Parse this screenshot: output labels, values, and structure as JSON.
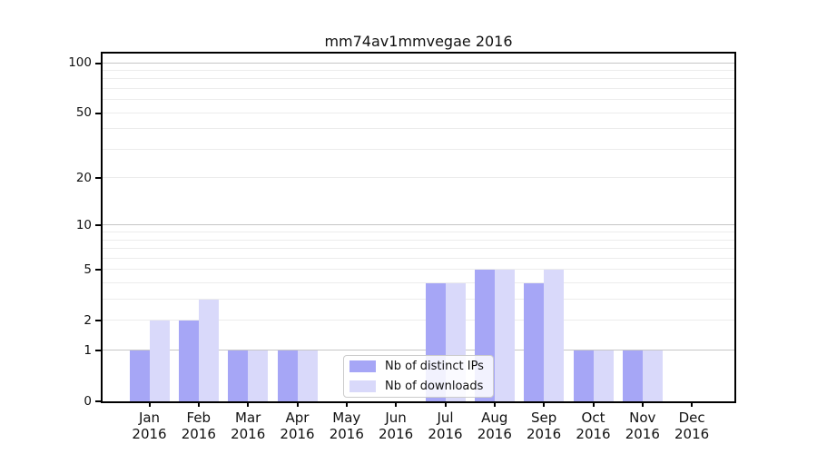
{
  "figure": {
    "background": "#ffffff"
  },
  "chart_data": {
    "type": "bar",
    "title": "mm74av1mmvegae 2016",
    "categories": [
      "Jan 2016",
      "Feb 2016",
      "Mar 2016",
      "Apr 2016",
      "May 2016",
      "Jun 2016",
      "Jul 2016",
      "Aug 2016",
      "Sep 2016",
      "Oct 2016",
      "Nov 2016",
      "Dec 2016"
    ],
    "series": [
      {
        "name": "Nb of distinct IPs",
        "color": "#a6a6f6",
        "values": [
          1,
          2,
          1,
          1,
          0,
          0,
          4,
          5,
          4,
          1,
          1,
          0
        ]
      },
      {
        "name": "Nb of downloads",
        "color": "#d9d9fa",
        "values": [
          2,
          3,
          1,
          1,
          0,
          0,
          4,
          5,
          5,
          1,
          1,
          0
        ]
      }
    ],
    "xlabel": "",
    "ylabel": "",
    "yscale": "log1p",
    "ylim": [
      0,
      114
    ],
    "y_major_ticks": [
      0,
      1,
      2,
      5,
      10,
      20,
      50,
      100
    ],
    "y_minor_ticks": [
      3,
      4,
      6,
      7,
      8,
      9,
      30,
      40,
      60,
      70,
      80,
      90
    ],
    "grid": "horizontal",
    "legend_position": "lower center",
    "colors": {
      "decade_gridline": "#c6c6c6",
      "minor_gridline": "#ececec",
      "axis": "#000000",
      "text": "#111111",
      "legend_border": "#cccccc"
    }
  }
}
